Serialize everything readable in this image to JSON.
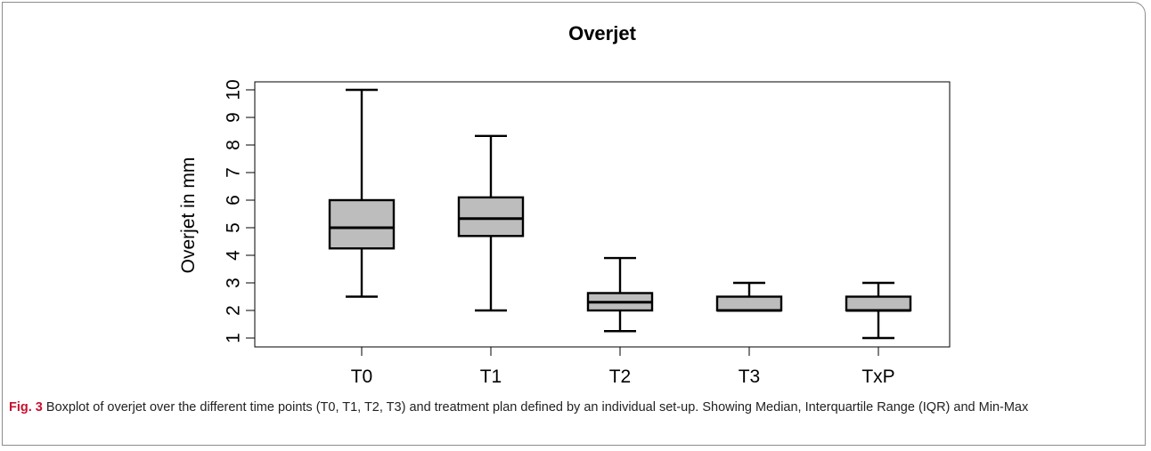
{
  "figure": {
    "label": "Fig. 3",
    "caption": "Boxplot of overjet over the different time points (T0, T1, T2, T3) and treatment plan defined by an individual set-up. Showing Median, Interquartile Range (IQR) and Min-Max"
  },
  "chart_data": {
    "type": "boxplot",
    "title": "Overjet",
    "xlabel": "",
    "ylabel": "Overjet in mm",
    "ylim": [
      1,
      10
    ],
    "yticks": [
      1,
      2,
      3,
      4,
      5,
      6,
      7,
      8,
      9,
      10
    ],
    "categories": [
      "T0",
      "T1",
      "T2",
      "T3",
      "TxP"
    ],
    "boxes": [
      {
        "category": "T0",
        "min": 2.5,
        "q1": 4.25,
        "median": 5.0,
        "q3": 6.0,
        "max": 10.0
      },
      {
        "category": "T1",
        "min": 2.0,
        "q1": 4.7,
        "median": 5.33,
        "q3": 6.1,
        "max": 8.33
      },
      {
        "category": "T2",
        "min": 1.25,
        "q1": 2.0,
        "median": 2.3,
        "q3": 2.63,
        "max": 3.9
      },
      {
        "category": "T3",
        "min": 2.0,
        "q1": 2.0,
        "median": 2.0,
        "q3": 2.5,
        "max": 3.0
      },
      {
        "category": "TxP",
        "min": 1.0,
        "q1": 2.0,
        "median": 2.0,
        "q3": 2.5,
        "max": 3.0
      }
    ],
    "colors": {
      "box_fill": "#bdbdbd",
      "stroke": "#000000"
    },
    "grid": false,
    "legend": "none"
  }
}
